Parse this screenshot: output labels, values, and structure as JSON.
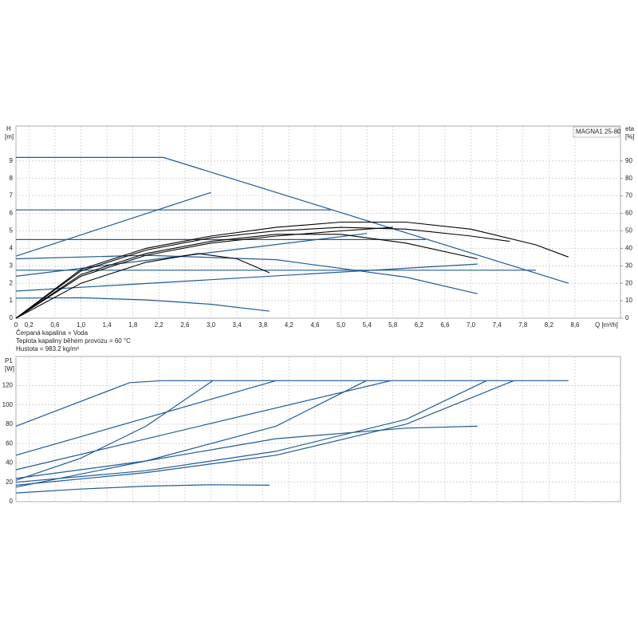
{
  "chart_data": [
    {
      "type": "line",
      "title": "MAGNA1 25-80",
      "ylabel": "H",
      "ylabel_unit": "[m]",
      "y2label": "eta",
      "y2label_unit": "[%]",
      "xlabel": "Q [m³/h]",
      "annotations": [
        "Čerpaná kapalina = Voda",
        "Teplota kapaliny během provozu = 60 °C",
        "Hustota = 983.2 kg/m³"
      ],
      "xlim": [
        0,
        9.3
      ],
      "ylim": [
        0,
        11
      ],
      "y2lim": [
        0,
        110
      ],
      "grid": true,
      "xticks": [
        0,
        {
          "value": 0.2,
          "label": "0,2"
        },
        {
          "value": 0.6,
          "label": "0,6"
        },
        {
          "value": 1.0,
          "label": "1,0"
        },
        {
          "value": 1.4,
          "label": "1,4"
        },
        {
          "value": 1.8,
          "label": "1,8"
        },
        {
          "value": 2.2,
          "label": "2,2"
        },
        {
          "value": 2.6,
          "label": "2,6"
        },
        {
          "value": 3.0,
          "label": "3,0"
        },
        {
          "value": 3.4,
          "label": "3,4"
        },
        {
          "value": 3.8,
          "label": "3,8"
        },
        {
          "value": 4.2,
          "label": "4,2"
        },
        {
          "value": 4.6,
          "label": "4,6"
        },
        {
          "value": 5.0,
          "label": "5,0"
        },
        {
          "value": 5.4,
          "label": "5,4"
        },
        {
          "value": 5.8,
          "label": "5,8"
        },
        {
          "value": 6.2,
          "label": "6,2"
        },
        {
          "value": 6.6,
          "label": "6,6"
        },
        {
          "value": 7.0,
          "label": "7,0"
        },
        {
          "value": 7.4,
          "label": "7,4"
        },
        {
          "value": 7.8,
          "label": "7,8"
        },
        {
          "value": 8.2,
          "label": "8,2"
        },
        {
          "value": 8.6,
          "label": "8,6"
        }
      ],
      "yticks": [
        0,
        1,
        2,
        3,
        4,
        5,
        6,
        7,
        8,
        9
      ],
      "y2ticks": [
        0,
        10,
        20,
        30,
        40,
        50,
        60,
        70,
        80,
        90
      ],
      "series": [
        {
          "color": "#1f5a96",
          "x": [
            0,
            2.27,
            8.5
          ],
          "values": [
            9.2,
            9.2,
            2.0
          ]
        },
        {
          "color": "#1f5a96",
          "x": [
            0,
            4.85
          ],
          "values": [
            6.2,
            6.2
          ]
        },
        {
          "color": "#1f5a96",
          "x": [
            0,
            6.3
          ],
          "values": [
            4.5,
            4.5
          ]
        },
        {
          "color": "#1f5a96",
          "x": [
            0,
            8.0
          ],
          "values": [
            2.75,
            2.75
          ]
        },
        {
          "color": "#1f5a96",
          "x": [
            0,
            3.0
          ],
          "values": [
            3.55,
            7.2
          ]
        },
        {
          "color": "#1f5a96",
          "x": [
            0,
            5.4
          ],
          "values": [
            2.4,
            4.85
          ]
        },
        {
          "color": "#1f5a96",
          "x": [
            0,
            7.1
          ],
          "values": [
            1.55,
            3.1
          ]
        },
        {
          "color": "#1f5a96",
          "x": [
            0,
            1,
            2,
            3,
            3.9
          ],
          "values": [
            1.15,
            1.17,
            1.05,
            0.8,
            0.4
          ]
        },
        {
          "color": "#1f5a96",
          "x": [
            0,
            2,
            4,
            6,
            7.1
          ],
          "values": [
            3.4,
            3.6,
            3.35,
            2.35,
            1.4
          ]
        },
        {
          "color": "#000000",
          "axis": "y2",
          "x": [
            0,
            1,
            2,
            3,
            4,
            5,
            6,
            7,
            8,
            8.5
          ],
          "values": [
            0,
            28,
            40,
            47,
            52,
            55,
            55,
            51,
            42,
            35
          ]
        },
        {
          "color": "#000000",
          "axis": "y2",
          "x": [
            0,
            1,
            2,
            3,
            4,
            5,
            6,
            7,
            7.6
          ],
          "values": [
            0,
            27,
            39,
            46,
            50,
            52,
            51,
            47,
            44
          ]
        },
        {
          "color": "#000000",
          "axis": "y2",
          "x": [
            0,
            1,
            2,
            3,
            4,
            5,
            6,
            7.1
          ],
          "values": [
            0,
            25,
            37,
            44,
            48,
            48,
            43,
            34
          ]
        },
        {
          "color": "#000000",
          "axis": "y2",
          "x": [
            0,
            1,
            2,
            3,
            4,
            5,
            5.8
          ],
          "values": [
            0,
            24,
            36,
            43,
            47,
            50,
            52
          ]
        },
        {
          "color": "#000000",
          "axis": "y2",
          "x": [
            0,
            1,
            2,
            2.8,
            3.4,
            3.9
          ],
          "values": [
            0,
            20,
            32,
            37,
            34,
            26
          ]
        }
      ]
    },
    {
      "type": "line",
      "ylabel": "P1",
      "ylabel_unit": "[W]",
      "xlim": [
        0,
        9.3
      ],
      "ylim": [
        0,
        150
      ],
      "grid": true,
      "yticks": [
        0,
        20,
        40,
        60,
        80,
        100,
        120
      ],
      "series": [
        {
          "color": "#1f5a96",
          "x": [
            0,
            1.75,
            2.25,
            8.5
          ],
          "values": [
            78,
            123,
            125,
            125
          ]
        },
        {
          "color": "#1f5a96",
          "x": [
            0,
            4.0
          ],
          "values": [
            48,
            125
          ]
        },
        {
          "color": "#1f5a96",
          "x": [
            0,
            1,
            2,
            3.03
          ],
          "values": [
            22,
            45,
            78,
            125
          ]
        },
        {
          "color": "#1f5a96",
          "x": [
            0,
            5.77
          ],
          "values": [
            33,
            125
          ]
        },
        {
          "color": "#1f5a96",
          "x": [
            0,
            2,
            4,
            5.39
          ],
          "values": [
            24,
            42,
            78,
            125
          ]
        },
        {
          "color": "#1f5a96",
          "x": [
            0,
            2,
            4,
            6,
            7.24
          ],
          "values": [
            20,
            32,
            52,
            85,
            125
          ]
        },
        {
          "color": "#1f5a96",
          "x": [
            0,
            2,
            4,
            6,
            7.66
          ],
          "values": [
            17,
            30,
            48,
            80,
            125
          ]
        },
        {
          "color": "#1f5a96",
          "x": [
            0,
            2,
            4,
            6,
            7.1
          ],
          "values": [
            15,
            42,
            65,
            76,
            78
          ]
        },
        {
          "color": "#1f5a96",
          "x": [
            0,
            1,
            2,
            3,
            3.9
          ],
          "values": [
            9,
            13,
            16,
            17.5,
            17
          ]
        }
      ]
    }
  ]
}
